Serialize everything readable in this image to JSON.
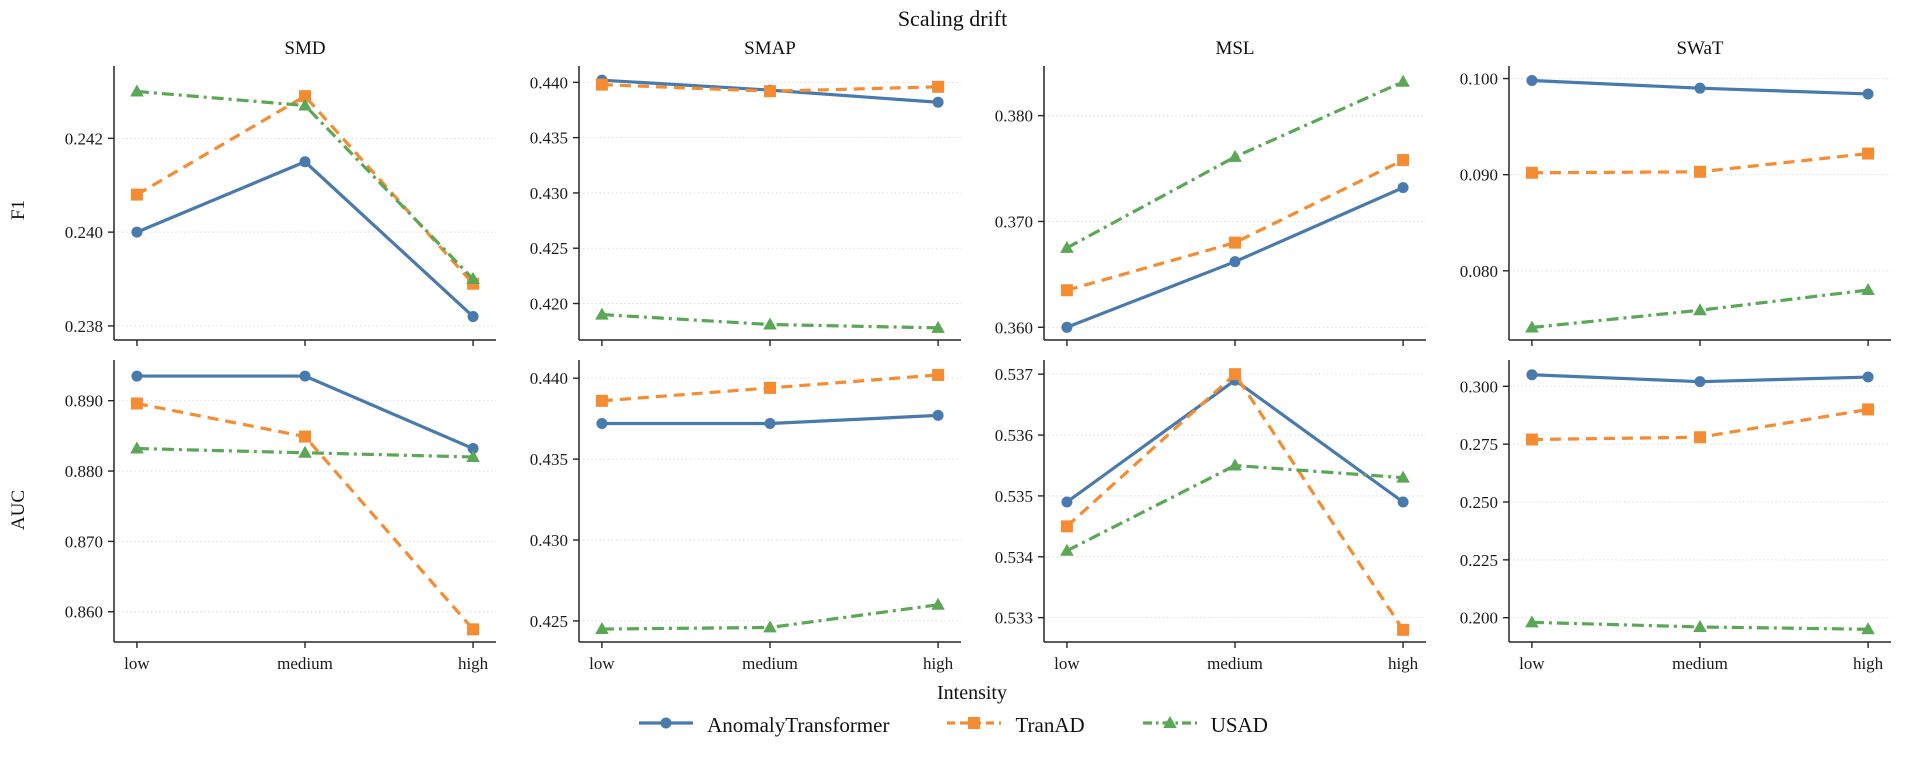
{
  "figure": {
    "title": "Scaling drift",
    "xlabel": "Intensity",
    "row_labels": [
      "F1",
      "AUC"
    ],
    "col_titles": [
      "SMD",
      "SMAP",
      "MSL",
      "SWaT"
    ]
  },
  "legend": {
    "items": [
      {
        "label": "AnomalyTransformer",
        "color": "#497aad",
        "marker": "circle",
        "linestyle": "solid"
      },
      {
        "label": "TranAD",
        "color": "#f58c32",
        "marker": "square",
        "linestyle": "dashed"
      },
      {
        "label": "USAD",
        "color": "#5aa755",
        "marker": "triangle",
        "linestyle": "dashdot"
      }
    ]
  },
  "chart_data": [
    {
      "type": "line",
      "row": "F1",
      "col": "SMD",
      "categories": [
        "low",
        "medium",
        "high"
      ],
      "yticks": [
        0.238,
        0.24,
        0.242
      ],
      "ylim": [
        0.2377,
        0.2435
      ],
      "series": [
        {
          "name": "AnomalyTransformer",
          "values": [
            0.24,
            0.2415,
            0.2382
          ]
        },
        {
          "name": "TranAD",
          "values": [
            0.2408,
            0.2429,
            0.2389
          ]
        },
        {
          "name": "USAD",
          "values": [
            0.243,
            0.2427,
            0.239
          ]
        }
      ]
    },
    {
      "type": "line",
      "row": "F1",
      "col": "SMAP",
      "categories": [
        "low",
        "medium",
        "high"
      ],
      "yticks": [
        0.42,
        0.425,
        0.43,
        0.435,
        0.44
      ],
      "ylim": [
        0.4167,
        0.4413
      ],
      "series": [
        {
          "name": "AnomalyTransformer",
          "values": [
            0.4402,
            0.4393,
            0.4382
          ]
        },
        {
          "name": "TranAD",
          "values": [
            0.4398,
            0.4392,
            0.4396
          ]
        },
        {
          "name": "USAD",
          "values": [
            0.419,
            0.4181,
            0.4178
          ]
        }
      ]
    },
    {
      "type": "line",
      "row": "F1",
      "col": "MSL",
      "categories": [
        "low",
        "medium",
        "high"
      ],
      "yticks": [
        0.36,
        0.37,
        0.38
      ],
      "ylim": [
        0.3588,
        0.3845
      ],
      "series": [
        {
          "name": "AnomalyTransformer",
          "values": [
            0.36,
            0.3662,
            0.3732
          ]
        },
        {
          "name": "TranAD",
          "values": [
            0.3635,
            0.368,
            0.3758
          ]
        },
        {
          "name": "USAD",
          "values": [
            0.3675,
            0.3761,
            0.3832
          ]
        }
      ]
    },
    {
      "type": "line",
      "row": "F1",
      "col": "SWaT",
      "categories": [
        "low",
        "medium",
        "high"
      ],
      "yticks": [
        0.08,
        0.09,
        0.1
      ],
      "ylim": [
        0.0728,
        0.1011
      ],
      "series": [
        {
          "name": "AnomalyTransformer",
          "values": [
            0.0998,
            0.099,
            0.0984
          ]
        },
        {
          "name": "TranAD",
          "values": [
            0.0902,
            0.0903,
            0.0922
          ]
        },
        {
          "name": "USAD",
          "values": [
            0.0741,
            0.0759,
            0.078
          ]
        }
      ]
    },
    {
      "type": "line",
      "row": "AUC",
      "col": "SMD",
      "categories": [
        "low",
        "medium",
        "high"
      ],
      "yticks": [
        0.86,
        0.87,
        0.88,
        0.89
      ],
      "ylim": [
        0.8557,
        0.8955
      ],
      "series": [
        {
          "name": "AnomalyTransformer",
          "values": [
            0.8935,
            0.8935,
            0.8832
          ]
        },
        {
          "name": "TranAD",
          "values": [
            0.8896,
            0.8849,
            0.8575
          ]
        },
        {
          "name": "USAD",
          "values": [
            0.8832,
            0.8826,
            0.882
          ]
        }
      ]
    },
    {
      "type": "line",
      "row": "AUC",
      "col": "SMAP",
      "categories": [
        "low",
        "medium",
        "high"
      ],
      "yticks": [
        0.425,
        0.43,
        0.435,
        0.44
      ],
      "ylim": [
        0.4237,
        0.441
      ],
      "series": [
        {
          "name": "AnomalyTransformer",
          "values": [
            0.4372,
            0.4372,
            0.4377
          ]
        },
        {
          "name": "TranAD",
          "values": [
            0.4386,
            0.4394,
            0.4402
          ]
        },
        {
          "name": "USAD",
          "values": [
            0.4245,
            0.4246,
            0.426
          ]
        }
      ]
    },
    {
      "type": "line",
      "row": "AUC",
      "col": "MSL",
      "categories": [
        "low",
        "medium",
        "high"
      ],
      "yticks": [
        0.533,
        0.534,
        0.535,
        0.536,
        0.537
      ],
      "ylim": [
        0.5326,
        0.5372
      ],
      "series": [
        {
          "name": "AnomalyTransformer",
          "values": [
            0.5349,
            0.5369,
            0.5349
          ]
        },
        {
          "name": "TranAD",
          "values": [
            0.5345,
            0.537,
            0.5328
          ]
        },
        {
          "name": "USAD",
          "values": [
            0.5341,
            0.5355,
            0.5353
          ]
        }
      ]
    },
    {
      "type": "line",
      "row": "AUC",
      "col": "SWaT",
      "categories": [
        "low",
        "medium",
        "high"
      ],
      "yticks": [
        0.2,
        0.225,
        0.25,
        0.275,
        0.3
      ],
      "ylim": [
        0.1895,
        0.3105
      ],
      "series": [
        {
          "name": "AnomalyTransformer",
          "values": [
            0.305,
            0.302,
            0.304
          ]
        },
        {
          "name": "TranAD",
          "values": [
            0.277,
            0.278,
            0.29
          ]
        },
        {
          "name": "USAD",
          "values": [
            0.198,
            0.196,
            0.195
          ]
        }
      ]
    }
  ]
}
